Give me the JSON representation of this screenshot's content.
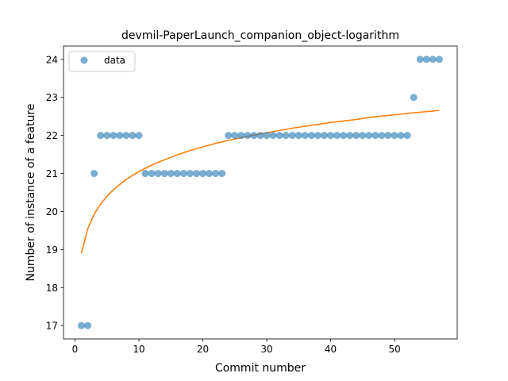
{
  "chart_data": {
    "type": "scatter",
    "title": "devmil-PaperLaunch_companion_object-logarithm",
    "xlabel": "Commit number",
    "ylabel": "Number of instance of a feature",
    "xlim": [
      -1.8,
      59.8
    ],
    "ylim": [
      16.65,
      24.35
    ],
    "xticks": [
      0,
      10,
      20,
      30,
      40,
      50
    ],
    "yticks": [
      17,
      18,
      19,
      20,
      21,
      22,
      23,
      24
    ],
    "grid": false,
    "legend_position": "top-left",
    "series": [
      {
        "name": "data",
        "kind": "scatter",
        "color": "#1f77b4",
        "x": [
          1,
          2,
          3,
          4,
          5,
          6,
          7,
          8,
          9,
          10,
          11,
          12,
          13,
          14,
          15,
          16,
          17,
          18,
          19,
          20,
          21,
          22,
          23,
          24,
          25,
          26,
          27,
          28,
          29,
          30,
          31,
          32,
          33,
          34,
          35,
          36,
          37,
          38,
          39,
          40,
          41,
          42,
          43,
          44,
          45,
          46,
          47,
          48,
          49,
          50,
          51,
          52,
          53,
          54,
          55,
          56,
          57
        ],
        "y": [
          17,
          17,
          21,
          22,
          22,
          22,
          22,
          22,
          22,
          22,
          21,
          21,
          21,
          21,
          21,
          21,
          21,
          21,
          21,
          21,
          21,
          21,
          21,
          22,
          22,
          22,
          22,
          22,
          22,
          22,
          22,
          22,
          22,
          22,
          22,
          22,
          22,
          22,
          22,
          22,
          22,
          22,
          22,
          22,
          22,
          22,
          22,
          22,
          22,
          22,
          22,
          22,
          23,
          24,
          24,
          24,
          24
        ]
      },
      {
        "kind": "line",
        "color": "#ff7f0e",
        "x": [
          1,
          2,
          3,
          4,
          5,
          6,
          7,
          8,
          9,
          10,
          12,
          14,
          16,
          18,
          20,
          22,
          24,
          26,
          28,
          30,
          32,
          34,
          36,
          38,
          40,
          42,
          44,
          46,
          48,
          50,
          52,
          54,
          56,
          57
        ],
        "y": [
          18.9,
          19.55,
          19.93,
          20.19,
          20.4,
          20.57,
          20.71,
          20.84,
          20.95,
          21.05,
          21.22,
          21.36,
          21.49,
          21.6,
          21.7,
          21.79,
          21.87,
          21.94,
          22.01,
          22.07,
          22.13,
          22.19,
          22.24,
          22.29,
          22.34,
          22.38,
          22.42,
          22.47,
          22.51,
          22.54,
          22.58,
          22.61,
          22.64,
          22.66
        ]
      }
    ]
  }
}
